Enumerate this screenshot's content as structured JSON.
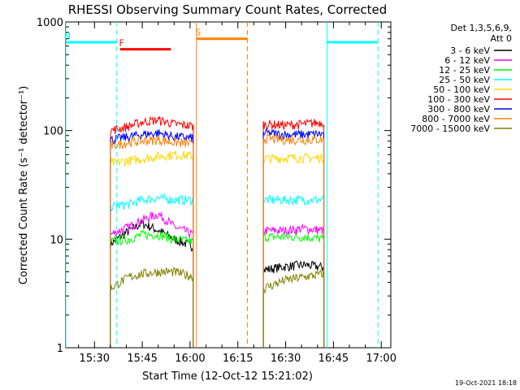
{
  "chart_data": {
    "type": "line",
    "title": "RHESSI Observing Summary Count Rates, Corrected",
    "xlabel": "Start Time (12-Oct-12 15:21:02)",
    "ylabel": "Corrected Count Rate (s⁻¹ detector⁻¹)",
    "footer": "19-Oct-2021 18:18",
    "yscale": "log",
    "ylim": [
      1,
      1000
    ],
    "xlim": [
      "15:21",
      "17:03"
    ],
    "x_tick_labels": [
      "15:30",
      "15:45",
      "16:00",
      "16:15",
      "16:30",
      "16:45",
      "17:00"
    ],
    "y_tick_labels": [
      "1",
      "10",
      "100",
      "1000"
    ],
    "legend_header": [
      "Det 1,3,5,6,9,",
      "Att 0"
    ],
    "legend_position": "top-right",
    "series": [
      {
        "name": "3 - 6 keV",
        "color": "#000000",
        "segments": [
          {
            "t": [
              "15:35",
              "15:41",
              "15:45",
              "15:50",
              "15:55",
              "16:01"
            ],
            "y": [
              9,
              12,
              14,
              12,
              10,
              8.5
            ]
          },
          {
            "t": [
              "16:23",
              "16:30",
              "16:36",
              "16:42"
            ],
            "y": [
              5.2,
              5.6,
              5.8,
              5.5
            ]
          }
        ]
      },
      {
        "name": "6 - 12 keV",
        "color": "#ff00ff",
        "segments": [
          {
            "t": [
              "15:35",
              "15:41",
              "15:45",
              "15:50",
              "15:55",
              "16:01"
            ],
            "y": [
              11,
              13,
              15,
              17,
              13,
              11
            ]
          },
          {
            "t": [
              "16:23",
              "16:30",
              "16:36",
              "16:42"
            ],
            "y": [
              12,
              12,
              12.5,
              12
            ]
          }
        ]
      },
      {
        "name": "12 - 25 keV",
        "color": "#00ff00",
        "segments": [
          {
            "t": [
              "15:35",
              "15:41",
              "15:45",
              "15:50",
              "15:55",
              "16:01"
            ],
            "y": [
              9.5,
              10,
              11,
              11,
              10,
              9.5
            ]
          },
          {
            "t": [
              "16:23",
              "16:30",
              "16:36",
              "16:42"
            ],
            "y": [
              10.5,
              10.5,
              10.5,
              10
            ]
          }
        ]
      },
      {
        "name": "25 - 50 keV",
        "color": "#00ffff",
        "segments": [
          {
            "t": [
              "15:35",
              "15:41",
              "15:45",
              "15:50",
              "15:55",
              "16:01"
            ],
            "y": [
              20,
              21,
              23,
              24,
              23,
              23
            ]
          },
          {
            "t": [
              "16:23",
              "16:30",
              "16:36",
              "16:42"
            ],
            "y": [
              23,
              23,
              23,
              23
            ]
          }
        ]
      },
      {
        "name": "50 - 100 keV",
        "color": "#ffd700",
        "segments": [
          {
            "t": [
              "15:35",
              "15:41",
              "15:45",
              "15:50",
              "15:55",
              "16:01"
            ],
            "y": [
              50,
              53,
              55,
              58,
              60,
              58
            ]
          },
          {
            "t": [
              "16:23",
              "16:30",
              "16:36",
              "16:42"
            ],
            "y": [
              55,
              56,
              56,
              56
            ]
          }
        ]
      },
      {
        "name": "100 - 300 keV",
        "color": "#ff0000",
        "segments": [
          {
            "t": [
              "15:35",
              "15:41",
              "15:45",
              "15:50",
              "15:55",
              "16:01"
            ],
            "y": [
              100,
              110,
              120,
              125,
              115,
              110
            ]
          },
          {
            "t": [
              "16:23",
              "16:30",
              "16:36",
              "16:42"
            ],
            "y": [
              115,
              112,
              115,
              120
            ]
          }
        ]
      },
      {
        "name": "300 - 800 keV",
        "color": "#0000ff",
        "segments": [
          {
            "t": [
              "15:35",
              "15:41",
              "15:45",
              "15:50",
              "15:55",
              "16:01"
            ],
            "y": [
              82,
              88,
              92,
              95,
              88,
              85
            ]
          },
          {
            "t": [
              "16:23",
              "16:30",
              "16:36",
              "16:42"
            ],
            "y": [
              95,
              92,
              92,
              93
            ]
          }
        ]
      },
      {
        "name": "800 - 7000 keV",
        "color": "#ff8000",
        "segments": [
          {
            "t": [
              "15:35",
              "15:41",
              "15:45",
              "15:50",
              "15:55",
              "16:01"
            ],
            "y": [
              72,
              78,
              80,
              82,
              78,
              75
            ]
          },
          {
            "t": [
              "16:23",
              "16:30",
              "16:36",
              "16:42"
            ],
            "y": [
              85,
              82,
              82,
              83
            ]
          }
        ]
      },
      {
        "name": "7000 - 15000 keV",
        "color": "#808000",
        "segments": [
          {
            "t": [
              "15:35",
              "15:38",
              "15:41",
              "15:45",
              "15:50",
              "15:55",
              "16:01"
            ],
            "y": [
              3.5,
              4,
              4.5,
              4.8,
              5,
              5,
              4.5
            ]
          },
          {
            "t": [
              "16:23",
              "16:30",
              "16:36",
              "16:42"
            ],
            "y": [
              3.5,
              4.2,
              4.5,
              4.8
            ]
          }
        ]
      }
    ],
    "flags": [
      {
        "label": "N",
        "color": "#00ffff",
        "y": 650,
        "segments": [
          [
            "15:21",
            "15:37"
          ],
          [
            "16:43",
            "16:59"
          ]
        ],
        "dashed_vlines": [
          "15:37",
          "16:59"
        ],
        "solid_vlines": [
          "15:21",
          "16:43"
        ]
      },
      {
        "label": "F",
        "color": "#ff0000",
        "y": 560,
        "segments": [
          [
            "15:38",
            "15:54"
          ]
        ]
      },
      {
        "label": "S",
        "color": "#ff8000",
        "y": 700,
        "segments": [
          [
            "16:02",
            "16:18"
          ]
        ],
        "dashed_vlines": [
          "16:18"
        ],
        "solid_vlines": [
          "16:02"
        ]
      }
    ],
    "orbit_gaps": [
      [
        "16:01",
        "16:23"
      ],
      [
        "15:21",
        "15:34"
      ],
      [
        "16:42",
        "17:03"
      ]
    ]
  }
}
